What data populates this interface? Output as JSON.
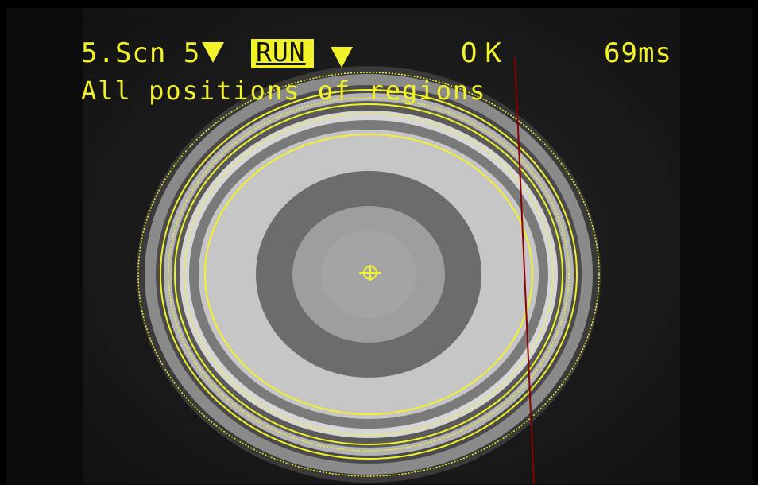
{
  "hud": {
    "scene": "5.Scn 5",
    "mode": "RUN",
    "result": "OK",
    "time": "69ms",
    "caption": "All positions of regions"
  },
  "colors": {
    "overlay": "#f2f22a",
    "reference_line": "#8b0000"
  },
  "icons": {
    "scene_dropdown": "triangle-down-icon",
    "mode_dropdown": "triangle-down-icon",
    "center_marker": "crosshair-icon"
  }
}
